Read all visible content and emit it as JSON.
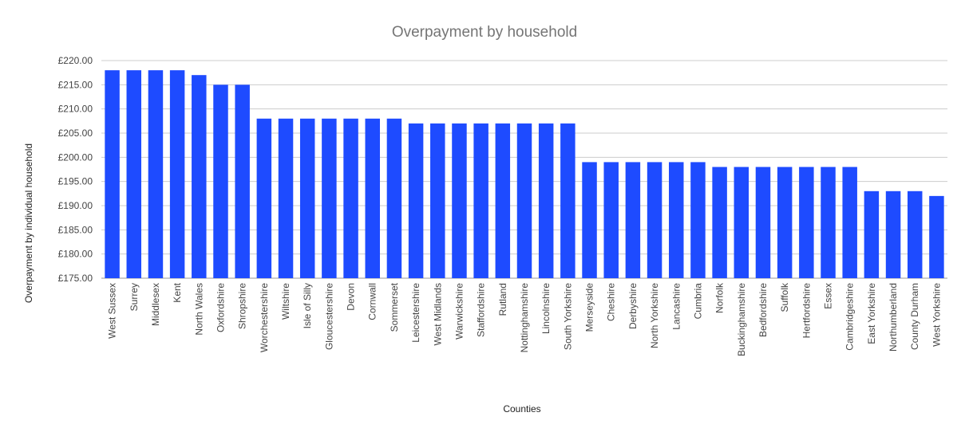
{
  "chart_data": {
    "type": "bar",
    "title": "Overpayment by household",
    "xlabel": "Counties",
    "ylabel": "Overpayment by individual household",
    "y_prefix": "£",
    "ylim": [
      175,
      220
    ],
    "y_ticks": [
      175,
      180,
      185,
      190,
      195,
      200,
      205,
      210,
      215,
      220
    ],
    "grid": true,
    "legend": "none",
    "bar_color": "#1e4bff",
    "categories": [
      "West Sussex",
      "Surrey",
      "Middlesex",
      "Kent",
      "North Wales",
      "Oxfordshire",
      "Shropshire",
      "Worchestershire",
      "Wiltshire",
      "Isle of Silly",
      "Gloucestershire",
      "Devon",
      "Cornwall",
      "Sommerset",
      "Leicestershire",
      "West Midlands",
      "Warwickshire",
      "Staffordshire",
      "Rutland",
      "Nottinghamshire",
      "Lincolnshire",
      "South Yorkshire",
      "Merseyside",
      "Cheshire",
      "Derbyshire",
      "North Yorkshire",
      "Lancashire",
      "Cumbria",
      "Norfolk",
      "Buckinghamshire",
      "Bedfordshire",
      "Suffolk",
      "Hertfordshire",
      "Essex",
      "Cambridgeshire",
      "East Yorkshire",
      "Northumberland",
      "County Durham",
      "West Yorkshire"
    ],
    "values": [
      218,
      218,
      218,
      218,
      217,
      215,
      215,
      208,
      208,
      208,
      208,
      208,
      208,
      208,
      207,
      207,
      207,
      207,
      207,
      207,
      207,
      207,
      199,
      199,
      199,
      199,
      199,
      199,
      198,
      198,
      198,
      198,
      198,
      198,
      198,
      193,
      193,
      193,
      192
    ]
  }
}
